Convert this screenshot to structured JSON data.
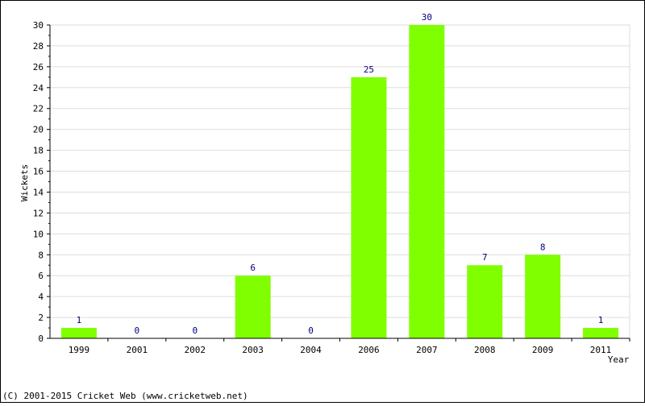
{
  "chart_data": {
    "type": "bar",
    "categories": [
      "1999",
      "2001",
      "2002",
      "2003",
      "2004",
      "2006",
      "2007",
      "2008",
      "2009",
      "2011"
    ],
    "values": [
      1,
      0,
      0,
      6,
      0,
      25,
      30,
      7,
      8,
      1
    ],
    "title": "",
    "xlabel": "Year",
    "ylabel": "Wickets",
    "ylim": [
      0,
      30
    ],
    "yticks": [
      0,
      2,
      4,
      6,
      8,
      10,
      12,
      14,
      16,
      18,
      20,
      22,
      24,
      26,
      28,
      30
    ],
    "grid": true,
    "bar_color": "#80ff00",
    "label_color": "#000080"
  },
  "footer": "(C) 2001-2015 Cricket Web (www.cricketweb.net)"
}
